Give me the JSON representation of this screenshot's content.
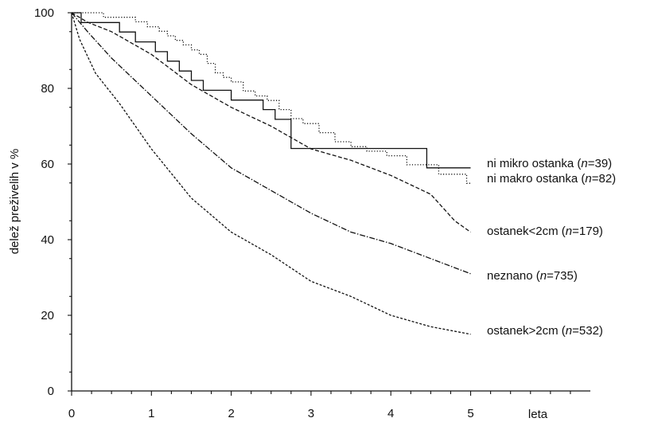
{
  "chart_data": {
    "type": "line",
    "title": "",
    "xlabel": "leta",
    "ylabel": "delež preživelih v %",
    "xlim": [
      0,
      6.5
    ],
    "ylim": [
      0,
      100
    ],
    "x_ticks": [
      "0",
      "1",
      "2",
      "3",
      "4",
      "5"
    ],
    "y_ticks": [
      "0",
      "20",
      "40",
      "60",
      "80",
      "100"
    ],
    "grid": false,
    "legend": "labels at right end of each curve",
    "series": [
      {
        "label_pre": "ni mikro ostanka (",
        "label_n": "n",
        "label_post": "=39)",
        "style": "solid",
        "step": true,
        "x": [
          0,
          0.12,
          0.6,
          0.8,
          1.05,
          1.2,
          1.35,
          1.5,
          1.65,
          2.0,
          2.4,
          2.55,
          2.75,
          4.45,
          5.0
        ],
        "y": [
          100,
          97.4,
          94.9,
          92.3,
          89.7,
          87.2,
          84.6,
          82.1,
          79.5,
          76.9,
          74.4,
          71.8,
          64.1,
          59.0,
          59.0
        ]
      },
      {
        "label_pre": "ni makro ostanka (",
        "label_n": "n",
        "label_post": "=82)",
        "style": "dotted",
        "step": true,
        "x": [
          0,
          0.4,
          0.8,
          0.95,
          1.1,
          1.2,
          1.3,
          1.4,
          1.5,
          1.6,
          1.7,
          1.8,
          1.9,
          2.0,
          2.15,
          2.3,
          2.45,
          2.6,
          2.75,
          2.9,
          3.1,
          3.3,
          3.5,
          3.7,
          3.95,
          4.2,
          4.6,
          4.85,
          4.95,
          5.0
        ],
        "y": [
          100,
          98.8,
          97.6,
          96.3,
          95.1,
          93.9,
          92.7,
          91.5,
          90.2,
          89.0,
          86.6,
          84.1,
          82.9,
          81.7,
          79.3,
          78.0,
          76.8,
          74.4,
          72.0,
          70.7,
          68.3,
          65.9,
          64.6,
          63.4,
          62.2,
          59.8,
          57.3,
          57.3,
          54.9,
          54.9
        ]
      },
      {
        "label_pre": "ostanek<2cm (",
        "label_n": "n",
        "label_post": "=179)",
        "style": "dashed",
        "step": false,
        "x": [
          0,
          0.2,
          0.5,
          1.0,
          1.5,
          2.0,
          2.5,
          3.0,
          3.5,
          4.0,
          4.5,
          4.8,
          5.0
        ],
        "y": [
          100,
          97.5,
          95,
          89,
          81,
          75,
          70,
          64,
          61,
          57,
          52,
          45,
          42
        ]
      },
      {
        "label_pre": "neznano (",
        "label_n": "n",
        "label_post": "=735)",
        "style": "dash-dot",
        "step": false,
        "x": [
          0,
          0.2,
          0.5,
          1.0,
          1.5,
          2.0,
          2.5,
          3.0,
          3.5,
          4.0,
          4.5,
          5.0
        ],
        "y": [
          100,
          95,
          88,
          78,
          68,
          59,
          53,
          47,
          42,
          39,
          35,
          31
        ]
      },
      {
        "label_pre": "ostanek>2cm (",
        "label_n": "n",
        "label_post": "=532)",
        "style": "dashed-fine",
        "step": false,
        "x": [
          0,
          0.1,
          0.3,
          0.6,
          1.0,
          1.5,
          2.0,
          2.5,
          3.0,
          3.5,
          4.0,
          4.5,
          5.0
        ],
        "y": [
          100,
          93,
          84,
          76,
          64,
          51,
          42,
          36,
          29,
          25,
          20,
          17,
          15
        ]
      }
    ]
  }
}
